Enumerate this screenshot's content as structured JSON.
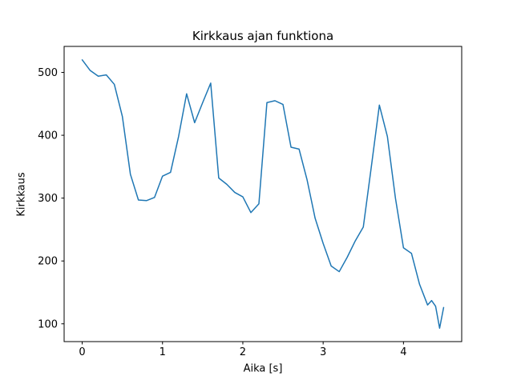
{
  "chart_data": {
    "type": "line",
    "title": "Kirkkaus ajan funktiona",
    "xlabel": "Aika [s]",
    "ylabel": "Kirkkaus",
    "legend_position": "none",
    "grid": false,
    "line_color": "#1f77b4",
    "xticks": [
      0,
      1,
      2,
      3,
      4
    ],
    "yticks": [
      100,
      200,
      300,
      400,
      500
    ],
    "xlim": [
      -0.225,
      4.725
    ],
    "ylim": [
      71.7,
      541.4
    ],
    "x": [
      0.0,
      0.1,
      0.2,
      0.3,
      0.4,
      0.5,
      0.6,
      0.7,
      0.8,
      0.9,
      1.0,
      1.1,
      1.2,
      1.3,
      1.4,
      1.5,
      1.6,
      1.7,
      1.8,
      1.9,
      2.0,
      2.1,
      2.2,
      2.3,
      2.4,
      2.5,
      2.6,
      2.7,
      2.8,
      2.9,
      3.0,
      3.1,
      3.2,
      3.3,
      3.4,
      3.5,
      3.6,
      3.7,
      3.8,
      3.9,
      4.0,
      4.1,
      4.2,
      4.3,
      4.35,
      4.4,
      4.45,
      4.5
    ],
    "y": [
      520,
      503,
      494,
      496,
      481,
      430,
      338,
      297,
      296,
      301,
      335,
      341,
      398,
      466,
      420,
      452,
      483,
      332,
      322,
      309,
      302,
      277,
      291,
      452,
      455,
      449,
      381,
      378,
      329,
      268,
      228,
      192,
      183,
      206,
      232,
      254,
      350,
      448,
      398,
      300,
      221,
      212,
      163,
      130,
      137,
      128,
      93,
      126
    ]
  }
}
